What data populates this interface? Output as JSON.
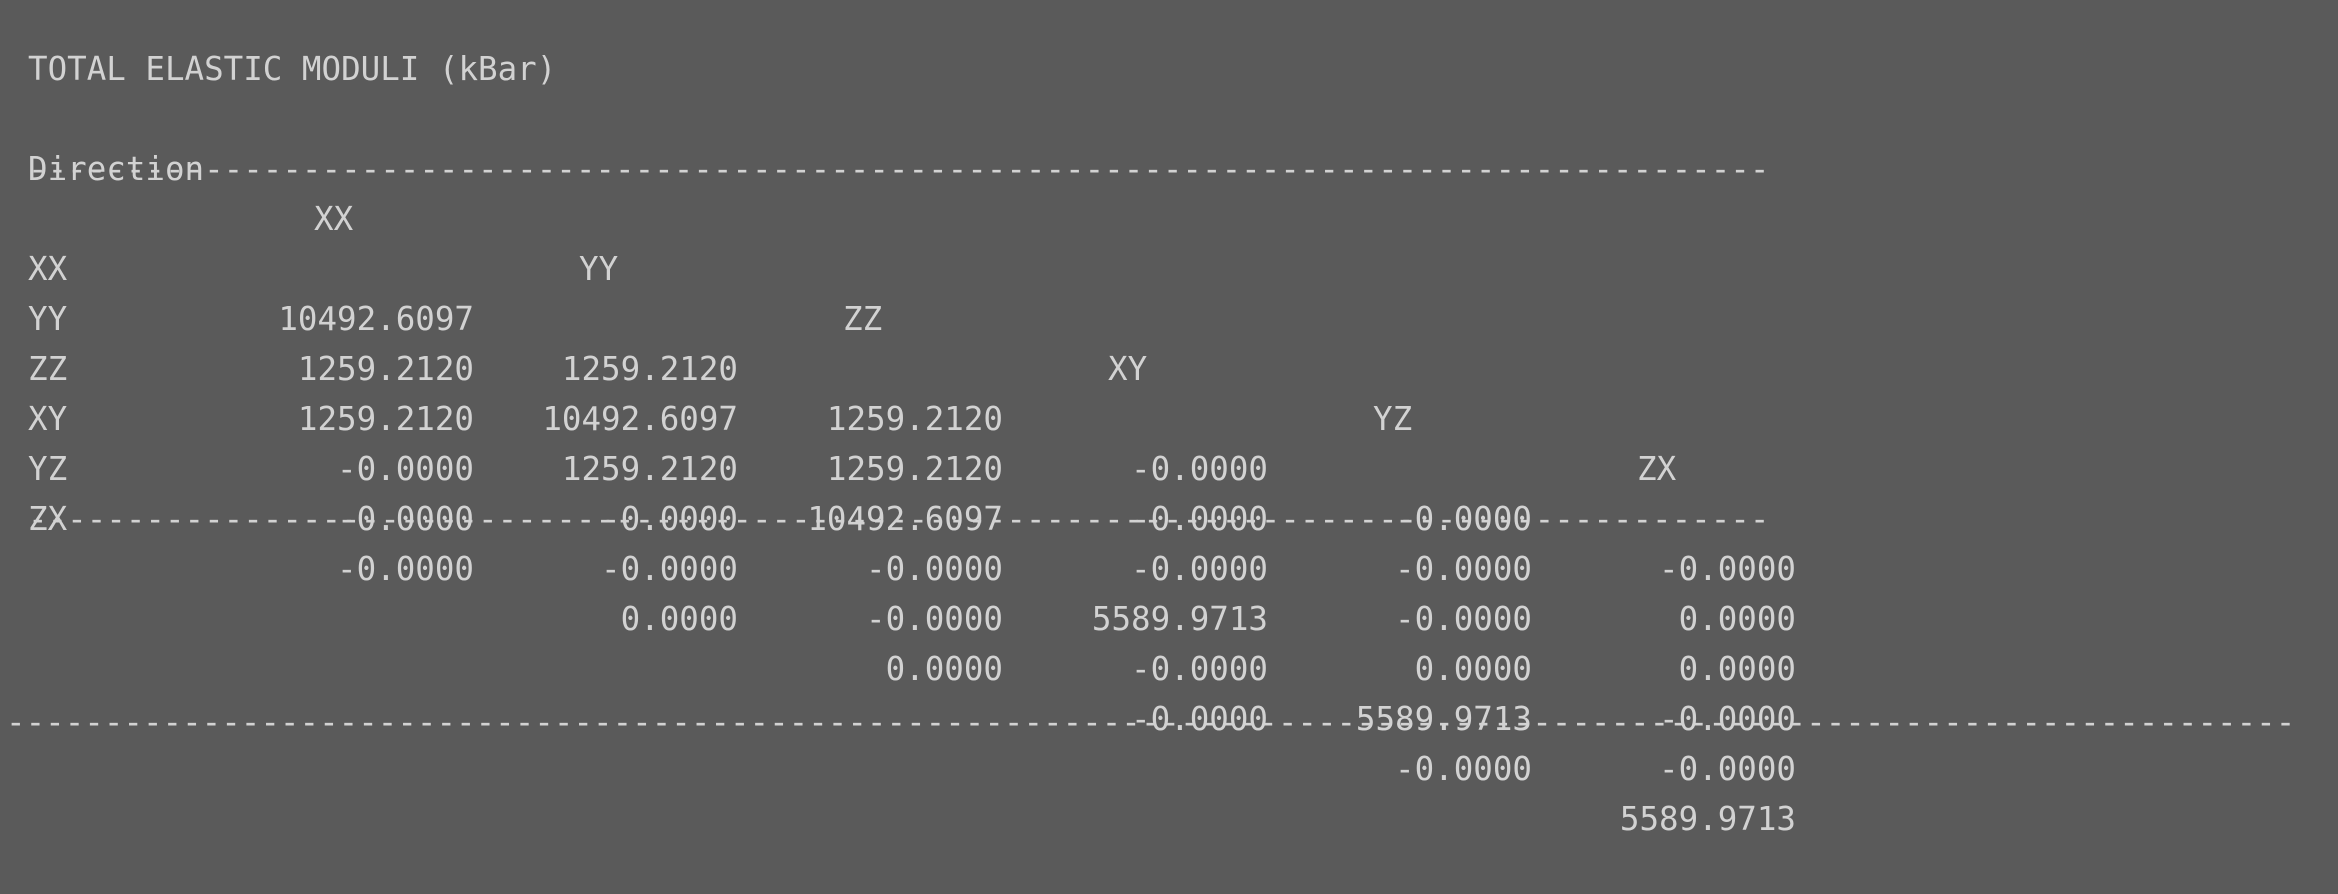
{
  "title": "TOTAL ELASTIC MODULI (kBar)",
  "header": {
    "direction": "Direction",
    "columns": [
      "XX",
      "YY",
      "ZZ",
      "XY",
      "YZ",
      "ZX"
    ]
  },
  "separator": "-----------------------------------------------------------------------------------------",
  "rows": [
    {
      "label": "XX",
      "values": [
        "10492.6097",
        "1259.2120",
        "1259.2120",
        "-0.0000",
        "-0.0000",
        "-0.0000"
      ]
    },
    {
      "label": "YY",
      "values": [
        "1259.2120",
        "10492.6097",
        "1259.2120",
        "-0.0000",
        "-0.0000",
        "0.0000"
      ]
    },
    {
      "label": "ZZ",
      "values": [
        "1259.2120",
        "1259.2120",
        "10492.6097",
        "-0.0000",
        "-0.0000",
        "0.0000"
      ]
    },
    {
      "label": "XY",
      "values": [
        "-0.0000",
        "-0.0000",
        "-0.0000",
        "5589.9713",
        "0.0000",
        "-0.0000"
      ]
    },
    {
      "label": "YZ",
      "values": [
        "-0.0000",
        "-0.0000",
        "-0.0000",
        "-0.0000",
        "5589.9713",
        "-0.0000"
      ]
    },
    {
      "label": "ZX",
      "values": [
        "-0.0000",
        "0.0000",
        "0.0000",
        "-0.0000",
        "-0.0000",
        "5589.9713"
      ]
    }
  ],
  "footer_rule": "--------------------------------------------------------------------------------------------------------------------------"
}
